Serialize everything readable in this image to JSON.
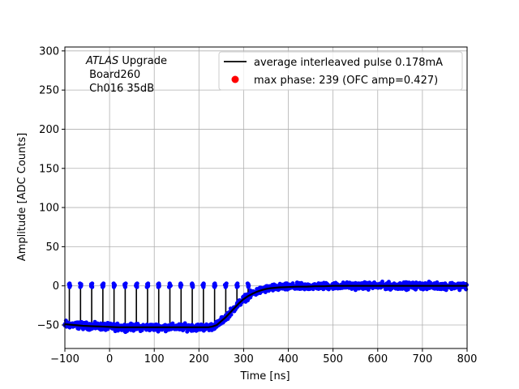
{
  "chart_data": {
    "type": "line",
    "title": "",
    "xlabel": "Time [ns]",
    "ylabel": "Amplitude [ADC Counts]",
    "xlim": [
      -100,
      800
    ],
    "ylim": [
      -80,
      305
    ],
    "x_ticks": [
      -100,
      0,
      100,
      200,
      300,
      400,
      500,
      600,
      700,
      800
    ],
    "y_ticks": [
      -50,
      0,
      50,
      100,
      150,
      200,
      250,
      300
    ],
    "x_tick_labels": [
      "−100",
      "0",
      "100",
      "200",
      "300",
      "400",
      "500",
      "600",
      "700",
      "800"
    ],
    "y_tick_labels": [
      "−50",
      "0",
      "50",
      "100",
      "150",
      "200",
      "250",
      "300"
    ],
    "grid": true,
    "legend_position": "top-right",
    "annotation": {
      "italic_part": "ATLAS",
      "line1_rest": " Upgrade",
      "line2": " Board260",
      "line3": " Ch016 35dB"
    },
    "series": [
      {
        "name": "average interleaved pulse 0.178mA",
        "kind": "line",
        "color": "#000000",
        "x": [
          -100,
          -80,
          -60,
          -40,
          -20,
          0,
          20,
          40,
          60,
          80,
          100,
          120,
          140,
          160,
          180,
          200,
          220,
          230,
          240,
          250,
          260,
          270,
          280,
          290,
          300,
          310,
          320,
          330,
          340,
          350,
          360,
          380,
          400,
          420,
          440,
          460,
          480,
          500,
          550,
          600,
          650,
          700,
          750,
          800
        ],
        "y": [
          -49,
          -50,
          -51,
          -51.5,
          -52,
          -52.5,
          -53,
          -53,
          -53,
          -53,
          -53,
          -53,
          -53,
          -53,
          -53,
          -53,
          -53,
          -52,
          -50,
          -45,
          -40,
          -34,
          -28,
          -22,
          -17,
          -13,
          -10,
          -7.5,
          -5.5,
          -4,
          -3,
          -2,
          -1.5,
          -1,
          -1,
          -0.5,
          -0.5,
          0,
          0,
          0,
          0,
          0,
          0,
          0
        ]
      },
      {
        "name": "samples",
        "kind": "scatter",
        "color": "#0000ff",
        "baseline_range": [
          -100,
          240
        ],
        "baseline_mean": -53,
        "transition_range": [
          240,
          420
        ],
        "tail_mean": 0,
        "noise": 3,
        "spike_x": [
          -90,
          -65,
          -40,
          -15,
          10,
          35,
          60,
          85,
          110,
          135,
          160,
          185,
          210,
          235,
          260,
          285,
          310
        ],
        "spike_top": 3
      },
      {
        "name": "max phase: 239 (OFC amp=0.427)",
        "kind": "marker",
        "color": "#ff0000",
        "x": [],
        "y": []
      }
    ]
  }
}
